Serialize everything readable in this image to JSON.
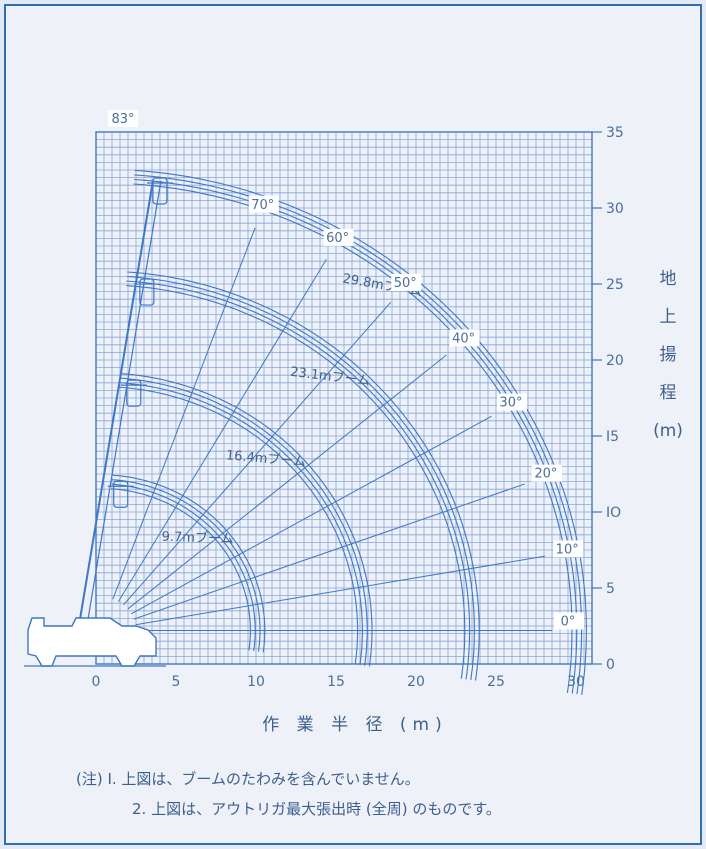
{
  "chart_data": {
    "type": "line",
    "title": "",
    "xlabel": "作 業 半 径 (m)",
    "ylabel_chars": [
      "地",
      "上",
      "揚",
      "程",
      "(m)"
    ],
    "xlim": [
      0,
      31
    ],
    "ylim": [
      0,
      35
    ],
    "x_ticks": [
      0,
      5,
      10,
      15,
      20,
      25,
      30
    ],
    "y_ticks": [
      0,
      5,
      10,
      15,
      20,
      25,
      30,
      35
    ],
    "y_tick_labels": [
      "0",
      "5",
      "IO",
      "I5",
      "20",
      "25",
      "30",
      "35"
    ],
    "grid": true,
    "boom_pivot": {
      "x": 0.3,
      "y": 2.2
    },
    "angles_deg": [
      0,
      10,
      20,
      30,
      40,
      50,
      60,
      70,
      83
    ],
    "angle_labels": [
      "0°",
      "10°",
      "20°",
      "30°",
      "40°",
      "50°",
      "60°",
      "70°",
      "83°"
    ],
    "series": [
      {
        "name": "9.7mブーム",
        "boom_length_m": 9.7
      },
      {
        "name": "16.4mブーム",
        "boom_length_m": 16.4
      },
      {
        "name": "23.1mブーム",
        "boom_length_m": 23.1
      },
      {
        "name": "29.8mブーム",
        "boom_length_m": 29.8
      }
    ]
  },
  "notes": [
    "(注) I. 上図は、ブームのたわみを含んでいません。",
    "2. 上図は、アウトリガ最大張出時 (全周) のものです。"
  ]
}
